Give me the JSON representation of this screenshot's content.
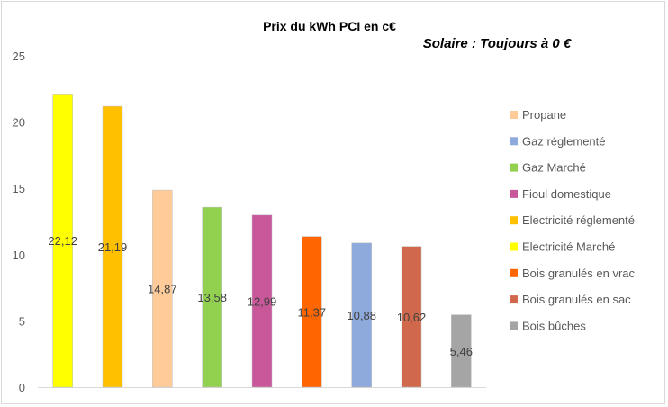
{
  "chart_data": {
    "type": "bar",
    "title": "Prix du kWh PCI en c€",
    "subtitle": "Solaire : Toujours à 0 €",
    "xlabel": "",
    "ylabel": "",
    "ylim": [
      0,
      25
    ],
    "yticks": [
      "0",
      "5",
      "10",
      "15",
      "20",
      "25"
    ],
    "grid": false,
    "legend_position": "right",
    "bars": [
      {
        "name": "Electricité Marché",
        "value": 22.12,
        "label": "22,12",
        "color": "#FFFF00"
      },
      {
        "name": "Electricité réglementé",
        "value": 21.19,
        "label": "21,19",
        "color": "#FFC000"
      },
      {
        "name": "Propane",
        "value": 14.87,
        "label": "14,87",
        "color": "#FFCC99"
      },
      {
        "name": "Gaz Marché",
        "value": 13.58,
        "label": "13,58",
        "color": "#92D050"
      },
      {
        "name": "Fioul domestique",
        "value": 12.99,
        "label": "12,99",
        "color": "#C9589B"
      },
      {
        "name": "Bois granulés en vrac",
        "value": 11.37,
        "label": "11,37",
        "color": "#FF6600"
      },
      {
        "name": "Gaz réglementé",
        "value": 10.88,
        "label": "10,88",
        "color": "#8EA9DB"
      },
      {
        "name": "Bois granulés en sac",
        "value": 10.62,
        "label": "10,62",
        "color": "#D0694B"
      },
      {
        "name": "Bois bûches",
        "value": 5.46,
        "label": "5,46",
        "color": "#A5A5A5"
      }
    ],
    "legend": [
      {
        "name": "Propane",
        "color": "#FFCC99"
      },
      {
        "name": "Gaz réglementé",
        "color": "#8EA9DB"
      },
      {
        "name": "Gaz Marché",
        "color": "#92D050"
      },
      {
        "name": "Fioul domestique",
        "color": "#C9589B"
      },
      {
        "name": "Electricité réglementé",
        "color": "#FFC000"
      },
      {
        "name": "Electricité Marché",
        "color": "#FFFF00"
      },
      {
        "name": "Bois granulés en vrac",
        "color": "#FF6600"
      },
      {
        "name": "Bois granulés en sac",
        "color": "#D0694B"
      },
      {
        "name": "Bois bûches",
        "color": "#A5A5A5"
      }
    ]
  }
}
